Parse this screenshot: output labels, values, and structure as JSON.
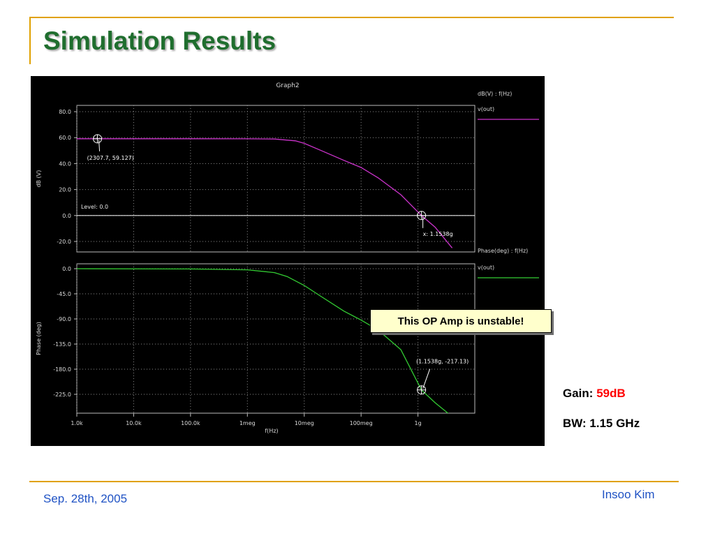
{
  "slide": {
    "title": "Simulation Results",
    "callout": "This OP Amp is unstable!",
    "gain_label": "Gain:",
    "gain_value": "59dB",
    "bw_text": "BW: 1.15 GHz",
    "date": "Sep. 28th, 2005",
    "author": "Insoo Kim"
  },
  "colors": {
    "accent_rule": "#e0a100",
    "title": "#1f6e2e",
    "footer_text": "#1f52c4",
    "gain_value": "#ff0000",
    "plot_bg": "#000000",
    "magnitude_trace": "#cc33cc",
    "phase_trace": "#33cc33"
  },
  "chart_data": {
    "title": "Graph2",
    "xlabel": "f(Hz)",
    "x_scale": "log",
    "x_ticks": [
      {
        "value": 1000,
        "label": "1.0k"
      },
      {
        "value": 10000,
        "label": "10.0k"
      },
      {
        "value": 100000,
        "label": "100.0k"
      },
      {
        "value": 1000000,
        "label": "1meg"
      },
      {
        "value": 10000000,
        "label": "10meg"
      },
      {
        "value": 100000000,
        "label": "100meg"
      },
      {
        "value": 1000000000,
        "label": "1g"
      }
    ],
    "xlim": [
      1000,
      10000000000
    ],
    "grid": true,
    "legend_placement": "right",
    "panels": [
      {
        "type": "line",
        "ylabel": "dB (V)",
        "ylim": [
          -25,
          85
        ],
        "y_ticks": [
          {
            "value": 80,
            "label": "80.0"
          },
          {
            "value": 60,
            "label": "60.0"
          },
          {
            "value": 40,
            "label": "40.0"
          },
          {
            "value": 20,
            "label": "20.0"
          },
          {
            "value": 0,
            "label": "0.0"
          },
          {
            "value": -20,
            "label": "-20.0"
          }
        ],
        "legend_title": "dB(V) : f(Hz)",
        "series": [
          {
            "name": "v(out)",
            "x": [
              1000,
              2307.7,
              10000,
              100000,
              1000000,
              3000000,
              7000000,
              10000000,
              20000000,
              50000000,
              100000000,
              200000000,
              500000000,
              1153800000,
              2000000000,
              4000000000
            ],
            "y": [
              59.13,
              59.13,
              59.13,
              59.13,
              59.1,
              58.9,
              57.5,
              55.6,
              50,
              42.5,
              37,
              29,
              16,
              0,
              -9,
              -25
            ]
          }
        ],
        "level_line": {
          "y": 0,
          "label": "Level: 0.0"
        },
        "markers": [
          {
            "x": 2307.7,
            "y": 59.127,
            "label": "(2307.7, 59.127)"
          },
          {
            "x": 1153800000,
            "y": 0,
            "label": "x: 1.1538g"
          }
        ]
      },
      {
        "type": "line",
        "ylabel": "Phase (deg)",
        "ylim": [
          -245,
          5
        ],
        "y_ticks": [
          {
            "value": 0,
            "label": "0.0"
          },
          {
            "value": -45,
            "label": "-45.0"
          },
          {
            "value": -90,
            "label": "-90.0"
          },
          {
            "value": -135,
            "label": "-135.0"
          },
          {
            "value": -180,
            "label": "-180.0"
          },
          {
            "value": -225,
            "label": "-225.0"
          }
        ],
        "legend_title": "Phase(deg) : f(Hz)",
        "series": [
          {
            "name": "v(out)",
            "x": [
              1000,
              100000,
              1000000,
              3000000,
              5000000,
              10000000,
              20000000,
              50000000,
              100000000,
              200000000,
              500000000,
              1153800000,
              2000000000,
              4000000000
            ],
            "y": [
              0,
              -0.5,
              -2,
              -7,
              -14,
              -30,
              -50,
              -76,
              -92,
              -110,
              -145,
              -217.13,
              -240,
              -265
            ]
          }
        ],
        "markers": [
          {
            "x": 1153800000,
            "y": -217.13,
            "label": "(1.1538g, -217.13)"
          }
        ]
      }
    ]
  }
}
